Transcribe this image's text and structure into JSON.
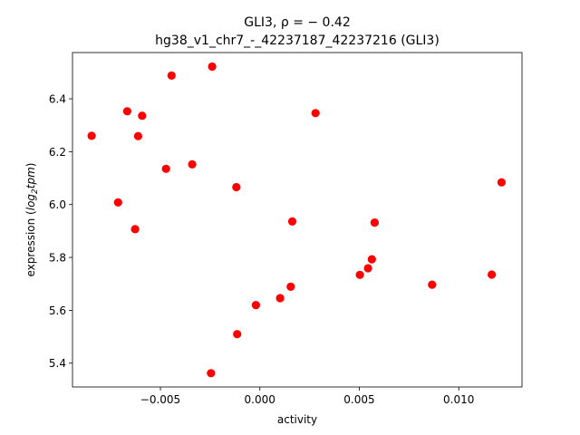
{
  "chart_data": {
    "type": "scatter",
    "title_line1": "GLI3, ρ = − 0.42",
    "title_line2": "hg38_v1_chr7_-_42237187_42237216 (GLI3)",
    "xlabel": "activity",
    "ylabel_prefix": "expression (",
    "ylabel_italic": "log",
    "ylabel_sub": "2",
    "ylabel_italic2": "tpm",
    "ylabel_suffix": ")",
    "xlim": [
      -0.00942,
      0.01318
    ],
    "ylim": [
      5.31,
      6.575
    ],
    "xticks": [
      -0.005,
      0.0,
      0.005,
      0.01
    ],
    "xtick_labels": [
      "−0.005",
      "0.000",
      "0.005",
      "0.010"
    ],
    "yticks": [
      5.4,
      5.6,
      5.8,
      6.0,
      6.2,
      6.4
    ],
    "ytick_labels": [
      "5.4",
      "5.6",
      "5.8",
      "6.0",
      "6.2",
      "6.4"
    ],
    "marker_color": "#ff0000",
    "points": [
      {
        "x": -0.00846,
        "y": 6.26
      },
      {
        "x": -0.00667,
        "y": 6.353
      },
      {
        "x": -0.00592,
        "y": 6.336
      },
      {
        "x": -0.00444,
        "y": 6.488
      },
      {
        "x": -0.0024,
        "y": 6.522
      },
      {
        "x": -0.00612,
        "y": 6.259
      },
      {
        "x": -0.00472,
        "y": 6.135
      },
      {
        "x": -0.0034,
        "y": 6.152
      },
      {
        "x": -0.00713,
        "y": 6.008
      },
      {
        "x": -0.00627,
        "y": 5.907
      },
      {
        "x": -0.00118,
        "y": 6.066
      },
      {
        "x": 0.0028,
        "y": 6.346
      },
      {
        "x": 0.00163,
        "y": 5.936
      },
      {
        "x": 0.00577,
        "y": 5.932
      },
      {
        "x": 0.01215,
        "y": 6.084
      },
      {
        "x": 0.00563,
        "y": 5.793
      },
      {
        "x": 0.00544,
        "y": 5.759
      },
      {
        "x": 0.00503,
        "y": 5.734
      },
      {
        "x": 0.01166,
        "y": 5.735
      },
      {
        "x": 0.00866,
        "y": 5.697
      },
      {
        "x": 0.00155,
        "y": 5.689
      },
      {
        "x": 0.00102,
        "y": 5.646
      },
      {
        "x": -0.0002,
        "y": 5.62
      },
      {
        "x": -0.00114,
        "y": 5.51
      },
      {
        "x": -0.00246,
        "y": 5.362
      }
    ]
  }
}
